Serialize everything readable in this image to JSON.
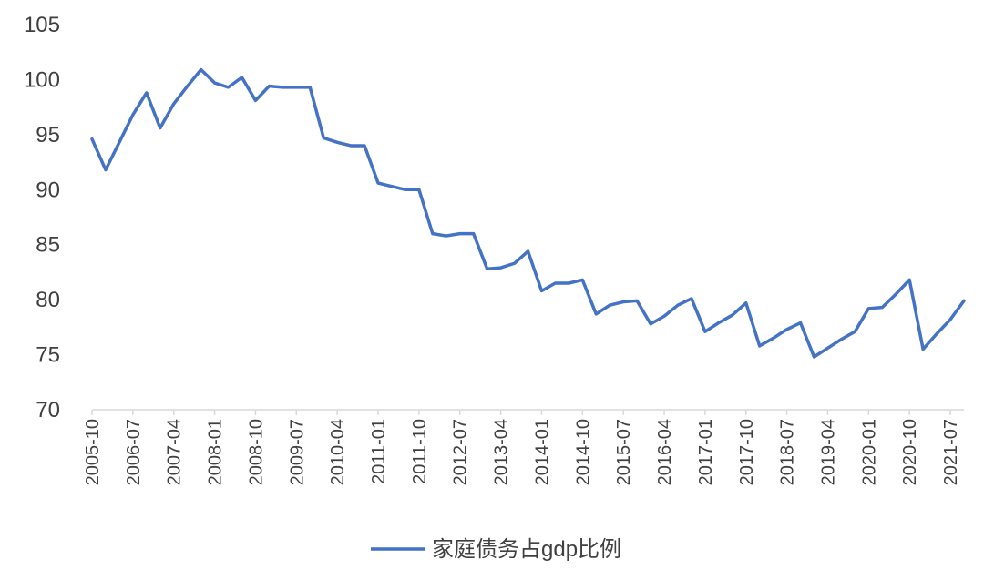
{
  "chart_data": {
    "type": "line",
    "title": "",
    "xlabel": "",
    "ylabel": "",
    "ylim": [
      70,
      105
    ],
    "yticks": [
      70,
      75,
      80,
      85,
      90,
      95,
      100,
      105
    ],
    "grid": false,
    "legend_position": "bottom",
    "x": [
      "2005-10",
      "2006-01",
      "2006-04",
      "2006-07",
      "2006-10",
      "2007-01",
      "2007-04",
      "2007-07",
      "2007-10",
      "2008-01",
      "2008-04",
      "2008-07",
      "2008-10",
      "2009-01",
      "2009-04",
      "2009-07",
      "2009-10",
      "2010-01",
      "2010-04",
      "2010-07",
      "2010-10",
      "2011-01",
      "2011-04",
      "2011-07",
      "2011-10",
      "2012-01",
      "2012-04",
      "2012-07",
      "2012-10",
      "2013-01",
      "2013-04",
      "2013-07",
      "2013-10",
      "2014-01",
      "2014-04",
      "2014-07",
      "2014-10",
      "2015-01",
      "2015-04",
      "2015-07",
      "2015-10",
      "2016-01",
      "2016-04",
      "2016-07",
      "2016-10",
      "2017-01",
      "2017-04",
      "2017-07",
      "2017-10",
      "2018-01",
      "2018-04",
      "2018-07",
      "2018-10",
      "2019-01",
      "2019-04",
      "2019-07",
      "2019-10",
      "2020-01",
      "2020-04",
      "2020-07",
      "2020-10",
      "2021-01",
      "2021-04",
      "2021-07",
      "2021-10"
    ],
    "xtick_labels": [
      "2005-10",
      "2006-07",
      "2007-04",
      "2008-01",
      "2008-10",
      "2009-07",
      "2010-04",
      "2011-01",
      "2011-10",
      "2012-07",
      "2013-04",
      "2014-01",
      "2014-10",
      "2015-07",
      "2016-04",
      "2017-01",
      "2017-10",
      "2018-07",
      "2019-04",
      "2020-01",
      "2020-10",
      "2021-07"
    ],
    "series": [
      {
        "name": "家庭债务占gdp比例",
        "color": "#4472c4",
        "values": [
          94.6,
          91.8,
          94.3,
          96.8,
          98.8,
          95.6,
          97.8,
          99.4,
          100.9,
          99.7,
          99.3,
          100.2,
          98.1,
          99.4,
          99.3,
          99.3,
          99.3,
          94.7,
          94.3,
          94.0,
          94.0,
          90.6,
          90.3,
          90.0,
          90.0,
          86.0,
          85.8,
          86.0,
          86.0,
          82.8,
          82.9,
          83.3,
          84.4,
          80.8,
          81.5,
          81.5,
          81.8,
          78.7,
          79.5,
          79.8,
          79.9,
          77.8,
          78.5,
          79.5,
          80.1,
          77.1,
          77.9,
          78.6,
          79.7,
          75.8,
          76.5,
          77.3,
          77.9,
          74.8,
          75.6,
          76.4,
          77.1,
          79.2,
          79.3,
          80.5,
          81.8,
          75.5,
          76.9,
          78.2,
          79.9
        ]
      }
    ]
  }
}
